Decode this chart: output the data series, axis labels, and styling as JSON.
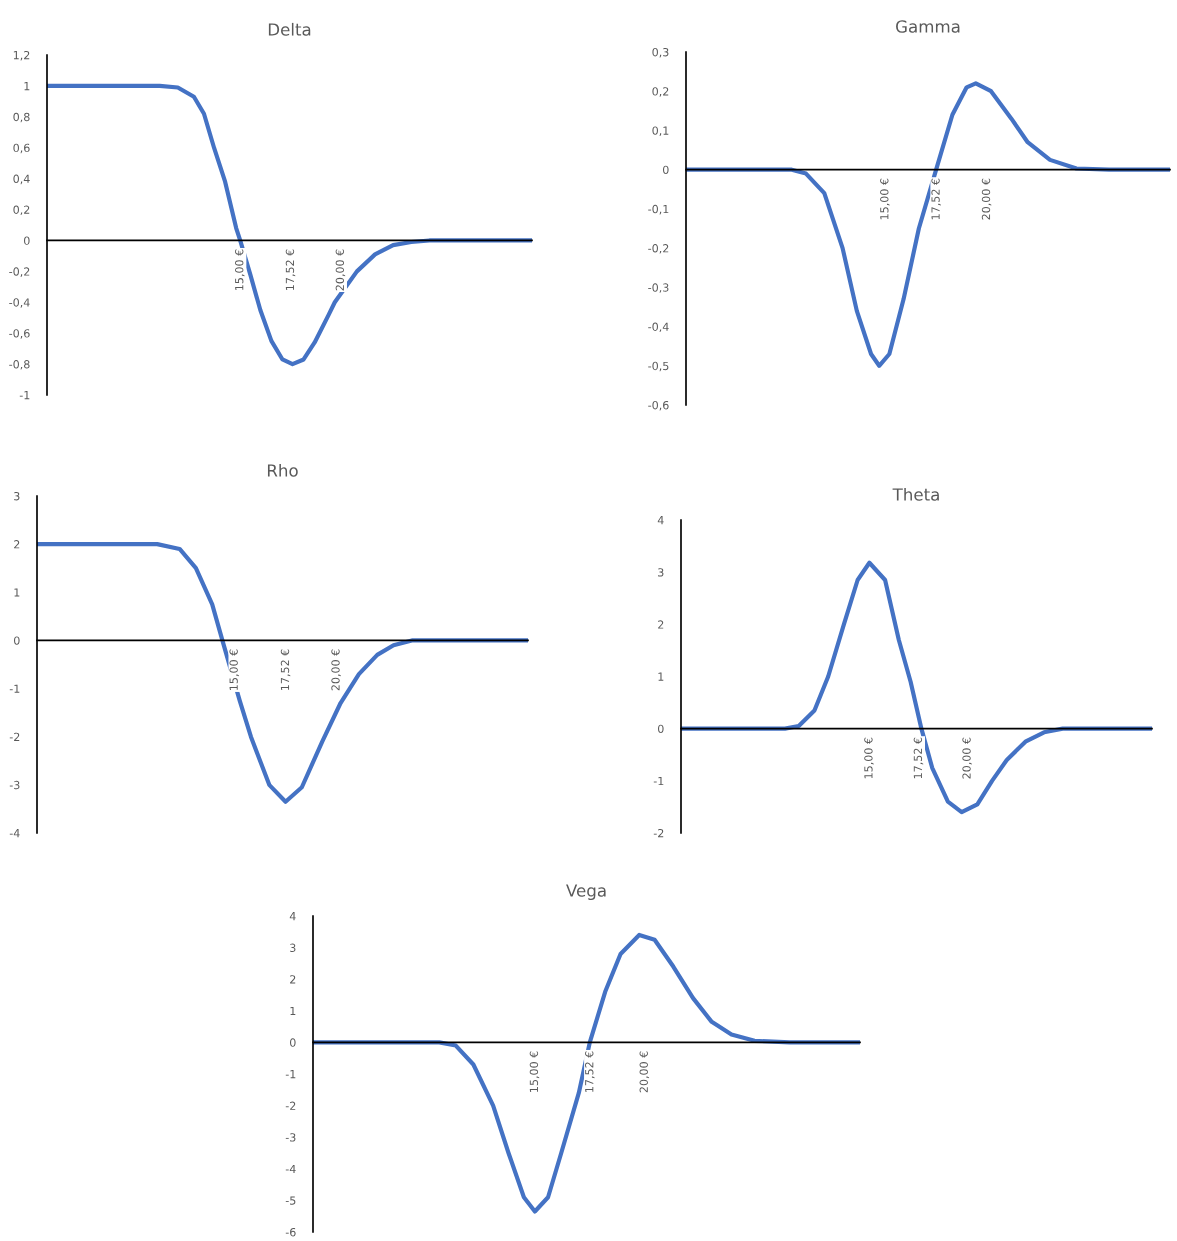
{
  "chart_data": [
    {
      "type": "line",
      "title": "Delta",
      "xlim": [
        5.4,
        29.5
      ],
      "xticks": [
        {
          "value": 15,
          "label": "15,00 €"
        },
        {
          "value": 17.52,
          "label": "17,52 €"
        },
        {
          "value": 20,
          "label": "20,00 €"
        }
      ],
      "ylim": [
        -1,
        1.2
      ],
      "yticks": [
        {
          "value": -1,
          "label": "-1"
        },
        {
          "value": -0.8,
          "label": "-0,8"
        },
        {
          "value": -0.6,
          "label": "-0,6"
        },
        {
          "value": -0.4,
          "label": "-0,4"
        },
        {
          "value": -0.2,
          "label": "-0,2"
        },
        {
          "value": 0,
          "label": "0"
        },
        {
          "value": 0.2,
          "label": "0,2"
        },
        {
          "value": 0.4,
          "label": "0,4"
        },
        {
          "value": 0.6,
          "label": "0,6"
        },
        {
          "value": 0.8,
          "label": "0,8"
        },
        {
          "value": 1,
          "label": "1"
        },
        {
          "value": 1.2,
          "label": "1,2"
        }
      ],
      "series": [
        {
          "color": "#4472c4",
          "x": [
            5.4,
            8,
            11,
            11.9,
            12.7,
            13.2,
            13.7,
            14.25,
            14.8,
            15,
            15.5,
            16,
            16.55,
            17.1,
            17.6,
            18.15,
            18.7,
            19.4,
            19.7,
            20.8,
            21.7,
            22.6,
            23.5,
            24.4,
            27,
            29.5
          ],
          "values": [
            1,
            1,
            1,
            0.99,
            0.93,
            0.82,
            0.6,
            0.38,
            0.08,
            0,
            -0.22,
            -0.45,
            -0.65,
            -0.77,
            -0.8,
            -0.77,
            -0.66,
            -0.48,
            -0.4,
            -0.2,
            -0.09,
            -0.03,
            -0.01,
            0,
            0,
            0
          ]
        }
      ]
    },
    {
      "type": "line",
      "title": "Gamma",
      "xlim": [
        5.2,
        29.0
      ],
      "xticks": [
        {
          "value": 15,
          "label": "15,00 €"
        },
        {
          "value": 17.52,
          "label": "17,52 €"
        },
        {
          "value": 20,
          "label": "20,00 €"
        }
      ],
      "ylim": [
        -0.6,
        0.3
      ],
      "yticks": [
        {
          "value": -0.6,
          "label": "-0,6"
        },
        {
          "value": -0.5,
          "label": "-0,5"
        },
        {
          "value": -0.4,
          "label": "-0,4"
        },
        {
          "value": -0.3,
          "label": "-0,3"
        },
        {
          "value": -0.2,
          "label": "-0,2"
        },
        {
          "value": -0.1,
          "label": "-0,1"
        },
        {
          "value": 0,
          "label": "0"
        },
        {
          "value": 0.1,
          "label": "0,1"
        },
        {
          "value": 0.2,
          "label": "0,2"
        },
        {
          "value": 0.3,
          "label": "0,3"
        }
      ],
      "series": [
        {
          "color": "#4472c4",
          "x": [
            5.2,
            8,
            10.4,
            11.1,
            12.0,
            12.9,
            13.6,
            14.3,
            14.7,
            15.2,
            15.9,
            16.65,
            17.5,
            18.3,
            19.0,
            19.45,
            20.2,
            21.2,
            22.0,
            23.1,
            24.4,
            26,
            29.0
          ],
          "values": [
            0,
            0,
            0,
            -0.01,
            -0.06,
            -0.2,
            -0.36,
            -0.47,
            -0.5,
            -0.47,
            -0.33,
            -0.15,
            0,
            0.14,
            0.21,
            0.22,
            0.2,
            0.13,
            0.07,
            0.025,
            0.003,
            0,
            0
          ]
        }
      ]
    },
    {
      "type": "line",
      "title": "Rho",
      "xlim": [
        5.3,
        29.4
      ],
      "xticks": [
        {
          "value": 15,
          "label": "15,00 €"
        },
        {
          "value": 17.52,
          "label": "17,52 €"
        },
        {
          "value": 20,
          "label": "20,00 €"
        }
      ],
      "ylim": [
        -4,
        3
      ],
      "yticks": [
        -4,
        -3,
        -2,
        -1,
        0,
        1,
        2,
        3
      ],
      "series": [
        {
          "color": "#4472c4",
          "x": [
            5.3,
            8,
            11.2,
            12.3,
            13.1,
            13.9,
            14.4,
            15.25,
            15.8,
            16.7,
            17.5,
            18.3,
            19.3,
            20.2,
            21.1,
            22.0,
            22.8,
            23.7,
            26,
            29.4
          ],
          "values": [
            2,
            2,
            2,
            1.9,
            1.5,
            0.75,
            0,
            -1.25,
            -2.0,
            -3.0,
            -3.35,
            -3.05,
            -2.1,
            -1.3,
            -0.7,
            -0.3,
            -0.1,
            0,
            0,
            0
          ]
        }
      ]
    },
    {
      "type": "line",
      "title": "Theta",
      "xlim": [
        5.4,
        29.4
      ],
      "xticks": [
        {
          "value": 15,
          "label": "15,00 €"
        },
        {
          "value": 17.52,
          "label": "17,52 €"
        },
        {
          "value": 20,
          "label": "20,00 €"
        }
      ],
      "ylim": [
        -2,
        4
      ],
      "yticks": [
        -2,
        -1,
        0,
        1,
        2,
        3,
        4
      ],
      "series": [
        {
          "color": "#4472c4",
          "x": [
            5.4,
            8,
            10.7,
            11.4,
            12.2,
            12.9,
            13.7,
            14.4,
            15.0,
            15.8,
            16.5,
            17.1,
            17.65,
            18.2,
            19.0,
            19.7,
            20.5,
            21.25,
            22.0,
            22.95,
            23.9,
            24.85,
            27,
            29.4
          ],
          "values": [
            0,
            0,
            0,
            0.05,
            0.35,
            1.0,
            2.0,
            2.85,
            3.18,
            2.85,
            1.7,
            0.9,
            0,
            -0.75,
            -1.4,
            -1.6,
            -1.45,
            -1.0,
            -0.6,
            -0.25,
            -0.07,
            0,
            0,
            0
          ]
        }
      ]
    },
    {
      "type": "line",
      "title": "Vega",
      "xlim": [
        4.9,
        29.8
      ],
      "xticks": [
        {
          "value": 15,
          "label": "15,00 €"
        },
        {
          "value": 17.52,
          "label": "17,52 €"
        },
        {
          "value": 20,
          "label": "20,00 €"
        }
      ],
      "ylim": [
        -6,
        4
      ],
      "yticks": [
        -6,
        -5,
        -4,
        -3,
        -2,
        -1,
        0,
        1,
        2,
        3,
        4
      ],
      "series": [
        {
          "color": "#4472c4",
          "x": [
            4.9,
            8,
            10.65,
            11.4,
            12.2,
            13.1,
            13.8,
            14.5,
            15.0,
            15.6,
            16.2,
            17.0,
            17.5,
            18.2,
            18.9,
            19.75,
            20.45,
            21.3,
            22.2,
            23.05,
            23.95,
            25.0,
            26.6,
            29.8
          ],
          "values": [
            0,
            0,
            0,
            -0.1,
            -0.7,
            -2.0,
            -3.5,
            -4.9,
            -5.35,
            -4.9,
            -3.5,
            -1.6,
            0,
            1.6,
            2.8,
            3.4,
            3.25,
            2.4,
            1.4,
            0.65,
            0.25,
            0.05,
            0,
            0
          ]
        }
      ]
    }
  ]
}
